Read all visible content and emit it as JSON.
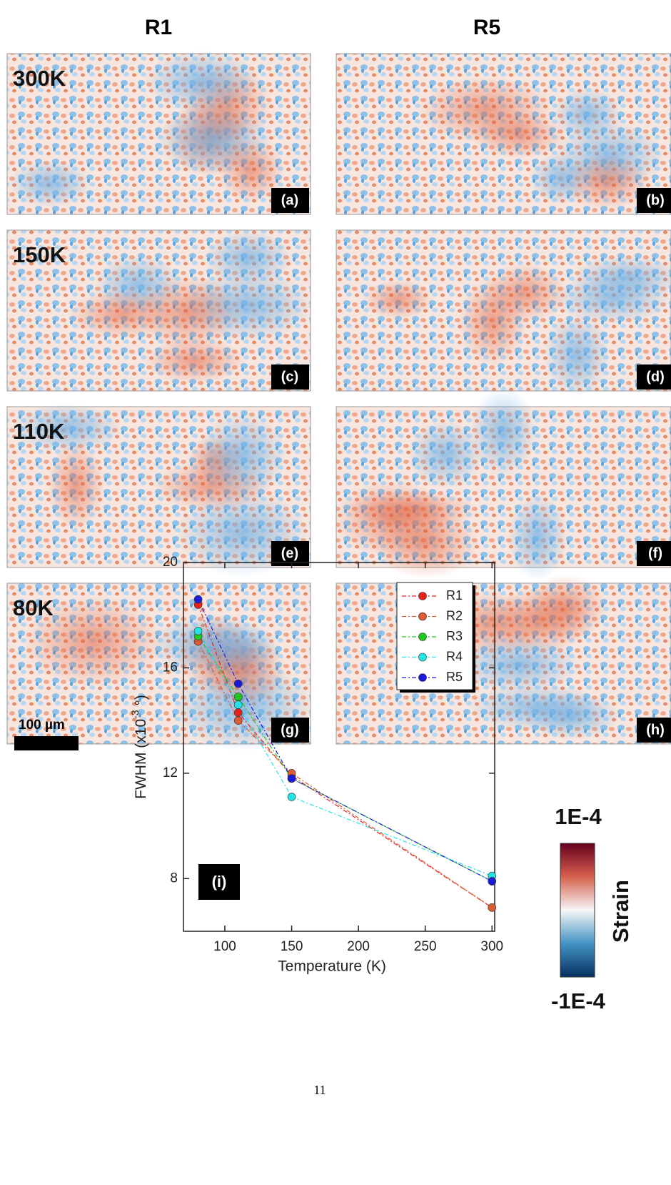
{
  "header": {
    "columns": [
      "R1",
      "R5"
    ]
  },
  "rows": [
    {
      "temperature": "300K",
      "letters": [
        "(a)",
        "(b)"
      ]
    },
    {
      "temperature": "150K",
      "letters": [
        "(c)",
        "(d)"
      ]
    },
    {
      "temperature": "110K",
      "letters": [
        "(e)",
        "(f)"
      ]
    },
    {
      "temperature": "80K",
      "letters": [
        "(g)",
        "(h)"
      ]
    }
  ],
  "scale_bar": "100 µm",
  "chart_data": {
    "type": "line",
    "panel_label": "(i)",
    "x_label": "Temperature (K)",
    "y_label": {
      "main": "FWHM (x10",
      "sup": "-3",
      "tail": " °)"
    },
    "x": [
      80,
      110,
      150,
      300
    ],
    "series": [
      {
        "name": "R1",
        "color": "#e8201c",
        "values": [
          18.4,
          14.3,
          11.9,
          6.9
        ]
      },
      {
        "name": "R2",
        "color": "#dd5a32",
        "values": [
          17.0,
          14.0,
          12.0,
          6.9
        ]
      },
      {
        "name": "R3",
        "color": "#22c81e",
        "values": [
          17.2,
          14.9,
          11.8,
          7.9
        ]
      },
      {
        "name": "R4",
        "color": "#22e4e4",
        "values": [
          17.4,
          14.6,
          11.1,
          8.1
        ]
      },
      {
        "name": "R5",
        "color": "#1a1ad8",
        "values": [
          18.6,
          15.4,
          11.8,
          7.9
        ]
      }
    ],
    "xlim": [
      69,
      302
    ],
    "ylim": [
      6,
      20
    ],
    "xticks": [
      100,
      150,
      200,
      250,
      300
    ],
    "yticks": [
      8,
      12,
      16,
      20
    ],
    "legend": "upper right"
  },
  "colorbar": {
    "max_label": "1E-4",
    "min_label": "-1E-4",
    "title": "Strain"
  },
  "page_number": "11"
}
